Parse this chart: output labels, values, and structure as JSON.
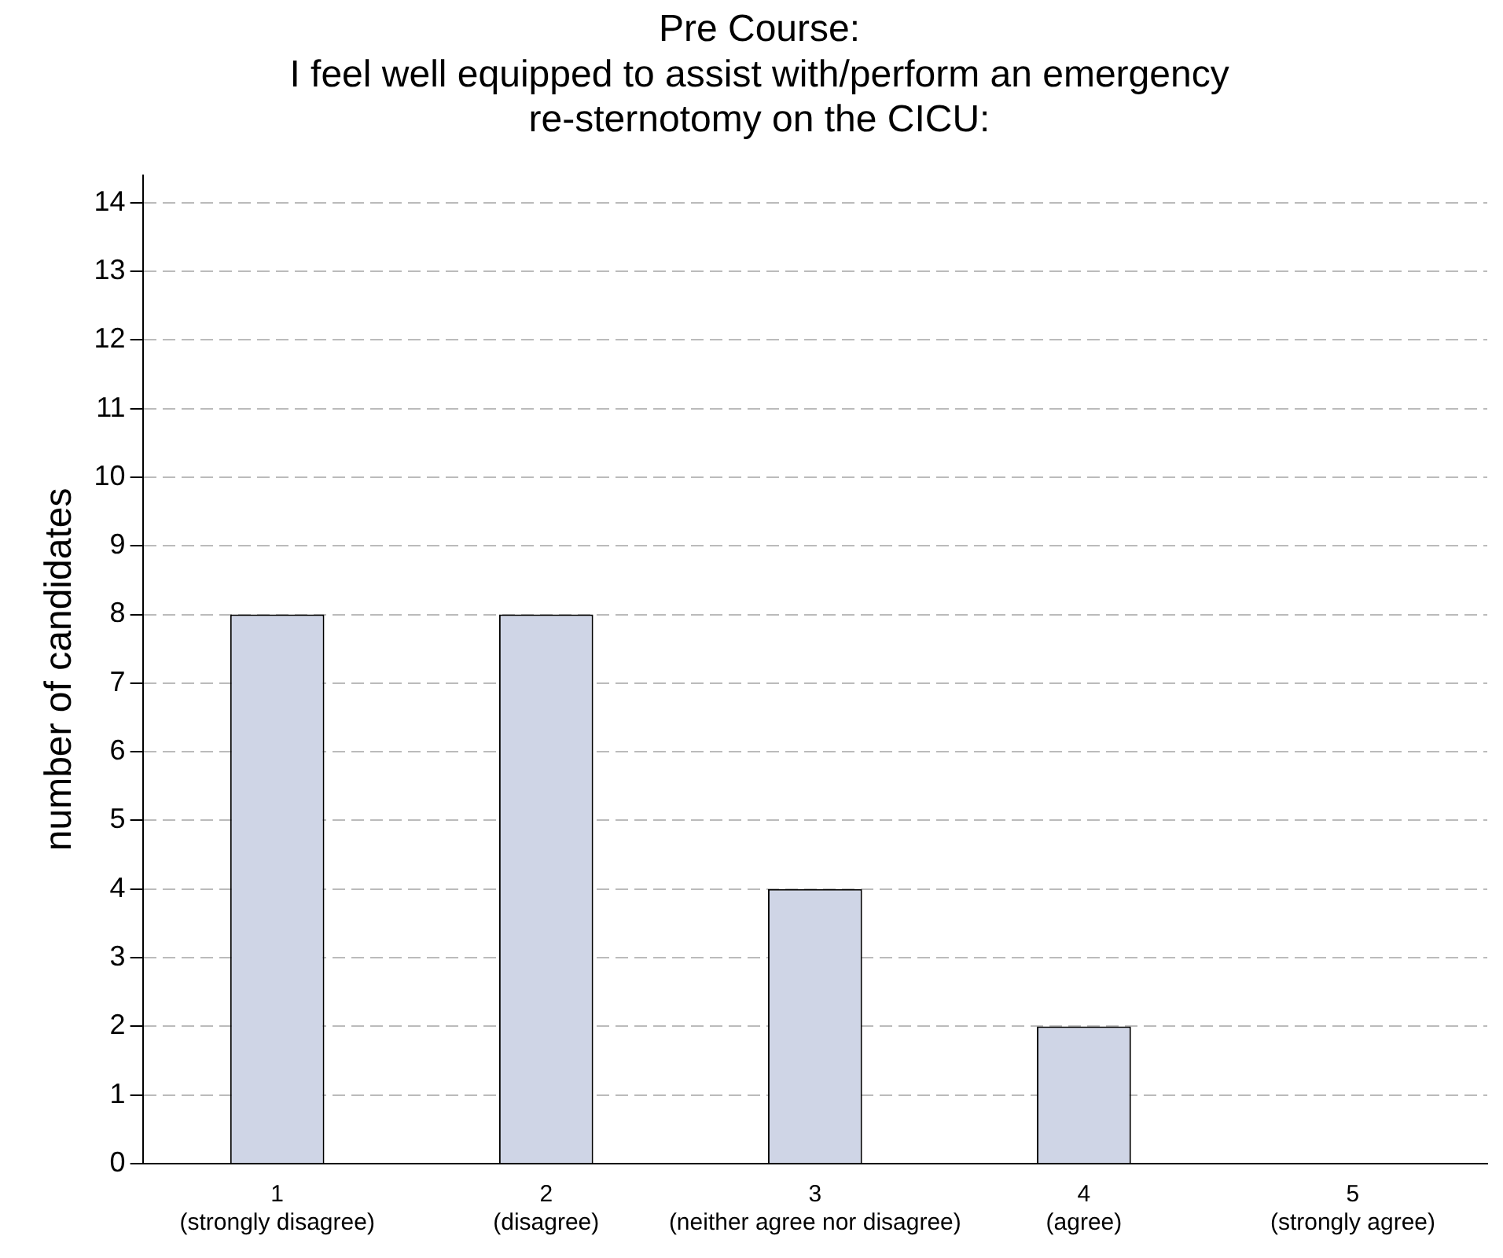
{
  "chart_data": {
    "type": "bar",
    "title": "Pre Course:\nI feel well equipped to assist with/perform an emergency\nre-sternotomy on the CICU:",
    "ylabel": "number of candidates",
    "categories": [
      "1\n(strongly disagree)",
      "2\n(disagree)",
      "3\n(neither agree nor disagree)",
      "4\n(agree)",
      "5\n(strongly agree)"
    ],
    "values": [
      8,
      8,
      4,
      2,
      0
    ],
    "color": "#cfd5e6",
    "ylim": [
      0,
      14.4
    ],
    "yticks": [
      0,
      1,
      2,
      3,
      4,
      5,
      6,
      7,
      8,
      9,
      10,
      11,
      12,
      13,
      14
    ],
    "grid": "y"
  }
}
